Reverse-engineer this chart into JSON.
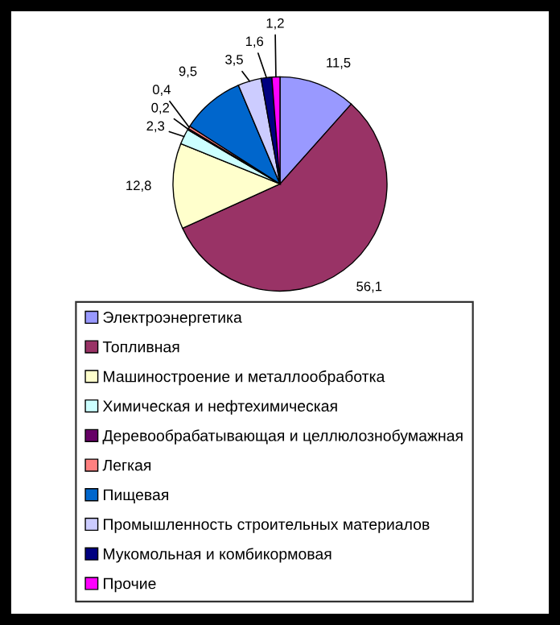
{
  "chart_data": {
    "type": "pie",
    "categories": [
      "Электроэнергетика",
      "Топливная",
      "Машиностроение и металлообработка",
      "Химическая и нефтехимическая",
      "Деревообрабатывающая и целлюлознобумажная",
      "Легкая",
      "Пищевая",
      "Промышленность строительных материалов",
      "Мукомольная и комбикормовая",
      "Прочие"
    ],
    "values": [
      11.5,
      56.1,
      12.8,
      2.3,
      0.2,
      0.4,
      9.5,
      3.5,
      1.6,
      1.2
    ],
    "value_labels": [
      "11,5",
      "56,1",
      "12,8",
      "2,3",
      "0,2",
      "0,4",
      "9,5",
      "3,5",
      "1,6",
      "1,2"
    ],
    "colors": [
      "#9999ff",
      "#993366",
      "#ffffcc",
      "#ccffff",
      "#660066",
      "#ff8080",
      "#0066cc",
      "#ccccff",
      "#000080",
      "#ff00ff"
    ],
    "legend": "bottom"
  }
}
